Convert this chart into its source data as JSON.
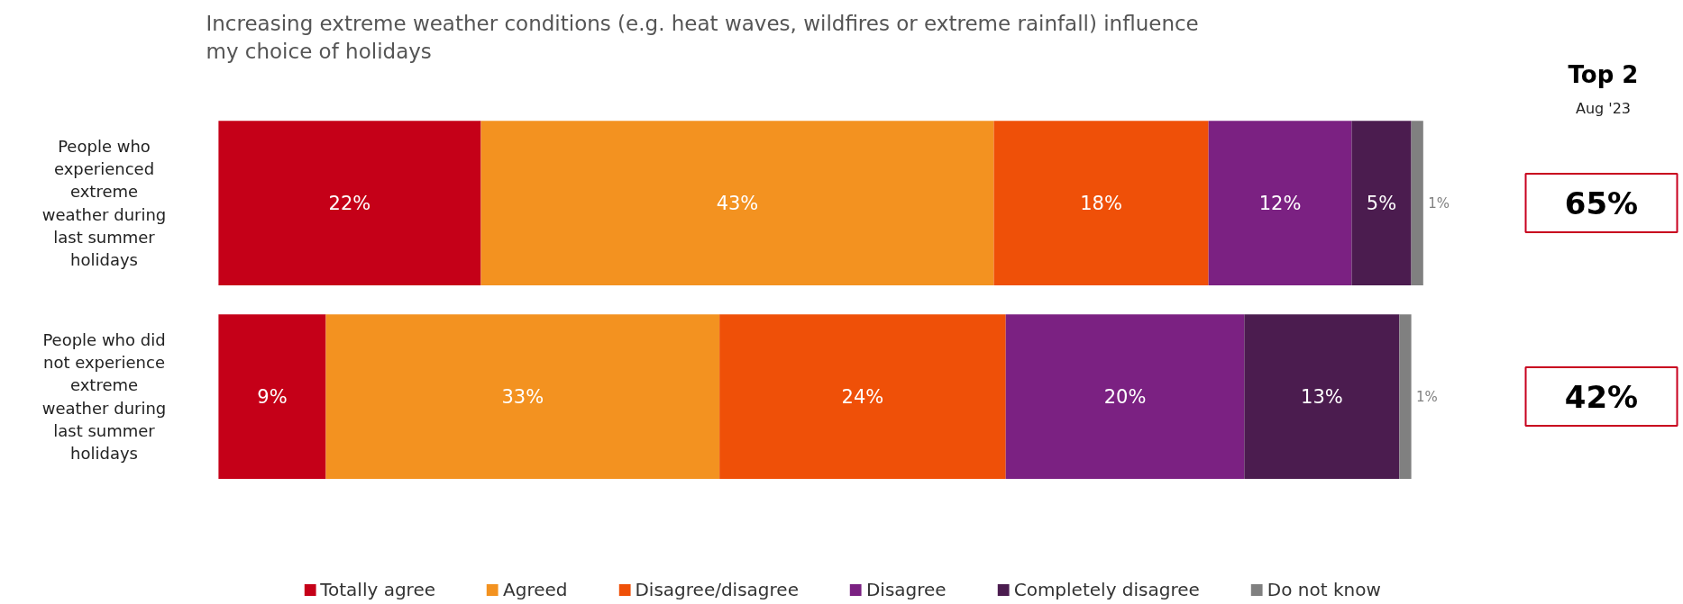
{
  "chart_data": {
    "type": "bar",
    "orientation": "horizontal",
    "stacked": true,
    "title": "Increasing extreme weather conditions (e.g. heat waves, wildfires or extreme rainfall) influence my choice of holidays",
    "categories": [
      "People who experienced extreme weather during last summer holidays",
      "People who did not experience extreme weather during last summer holidays"
    ],
    "series": [
      {
        "name": "Totally agree",
        "color": "#c50018",
        "values": [
          22,
          9
        ],
        "value_labels": [
          "22%",
          "9%"
        ]
      },
      {
        "name": "Agreed",
        "color": "#f39220",
        "values": [
          43,
          33
        ],
        "value_labels": [
          "43%",
          "33%"
        ]
      },
      {
        "name": "Disagree/disagree",
        "color": "#ef5008",
        "values": [
          18,
          24
        ],
        "value_labels": [
          "18%",
          "24%"
        ]
      },
      {
        "name": "Disagree",
        "color": "#7b2182",
        "values": [
          12,
          20
        ],
        "value_labels": [
          "12%",
          "20%"
        ]
      },
      {
        "name": "Completely disagree",
        "color": "#4b1c4f",
        "values": [
          5,
          13
        ],
        "value_labels": [
          "5%",
          "13%"
        ]
      },
      {
        "name": "Do not know",
        "color": "#808080",
        "values": [
          1,
          1
        ],
        "value_labels": [
          "1%",
          "1%"
        ]
      }
    ],
    "annotations": [
      "Top 2",
      "Aug '23",
      "65%",
      "42%"
    ],
    "legend": "bottom"
  }
}
